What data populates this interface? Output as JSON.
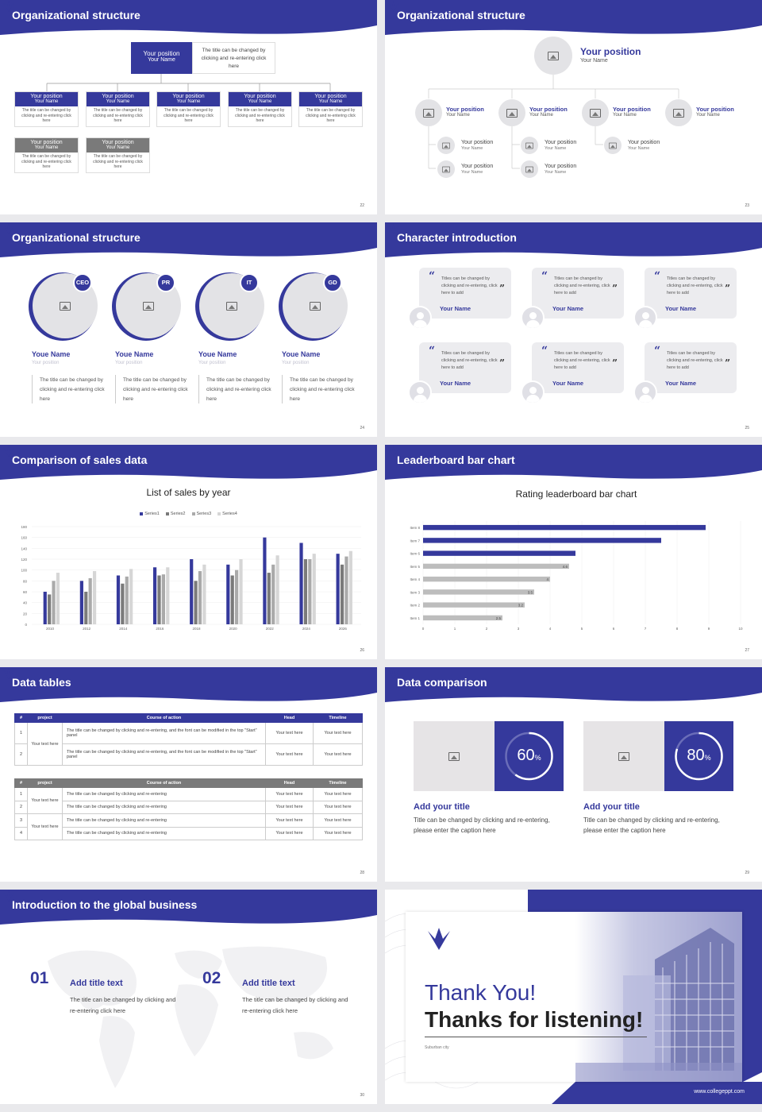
{
  "slides": {
    "s22": {
      "title": "Organizational structure",
      "num": "22",
      "top_box": {
        "position": "Your position",
        "name": "Your Name"
      },
      "top_desc": "The title can be changed by clicking and re-entering click here",
      "row1": [
        {
          "position": "Your position",
          "name": "Your Name",
          "desc": "The title can be changed by clicking and re-entering click here"
        },
        {
          "position": "Your position",
          "name": "Your Name",
          "desc": "The title can be changed by clicking and re-entering click here"
        },
        {
          "position": "Your position",
          "name": "Your Name",
          "desc": "The title can be changed by clicking and re-entering click here"
        },
        {
          "position": "Your position",
          "name": "Your Name",
          "desc": "The title can be changed by clicking and re-entering click here"
        },
        {
          "position": "Your position",
          "name": "Your Name",
          "desc": "The title can be changed by clicking and re-entering click here"
        }
      ],
      "row2": [
        {
          "position": "Your position",
          "name": "Your Name",
          "desc": "The title can be changed by clicking and re-entering click here"
        },
        {
          "position": "Your position",
          "name": "Your Name",
          "desc": "The title can be changed by clicking and re-entering click here"
        }
      ]
    },
    "s23": {
      "title": "Organizational structure",
      "num": "23",
      "top": {
        "position": "Your position",
        "name": "Your Name"
      },
      "level2": [
        {
          "position": "Your position",
          "name": "Your Name"
        },
        {
          "position": "Your position",
          "name": "Your Name"
        },
        {
          "position": "Your position",
          "name": "Your Name"
        },
        {
          "position": "Your position",
          "name": "Your Name"
        }
      ],
      "level3": [
        {
          "position": "Your position",
          "name": "Your Name"
        },
        {
          "position": "Your position",
          "name": "Your Name"
        },
        {
          "position": "Your position",
          "name": "Your Name"
        },
        {
          "position": "Your position",
          "name": "Your Name"
        },
        {
          "position": "Your position",
          "name": "Your Name"
        },
        {
          "position": "Your position",
          "name": "Your Name"
        }
      ]
    },
    "s24": {
      "title": "Organizational structure",
      "num": "24",
      "people": [
        {
          "badge": "CEO",
          "name": "Youe Name",
          "position": "Your position",
          "desc": "The title can be changed by clicking and re-entering click here"
        },
        {
          "badge": "PR",
          "name": "Youe Name",
          "position": "Your position",
          "desc": "The title can be changed by clicking and re-entering click here"
        },
        {
          "badge": "IT",
          "name": "Youe Name",
          "position": "Your position",
          "desc": "The title can be changed by clicking and re-entering click here"
        },
        {
          "badge": "GD",
          "name": "Youe Name",
          "position": "Your position",
          "desc": "The title can be changed by clicking and re-entering click here"
        }
      ]
    },
    "s25": {
      "title": "Character introduction",
      "num": "25",
      "cards": [
        {
          "text": "Titles can be changed by clicking and re-entering, click here to add",
          "name": "Your Name"
        },
        {
          "text": "Titles can be changed by clicking and re-entering, click here to add",
          "name": "Your Name"
        },
        {
          "text": "Titles can be changed by clicking and re-entering, click here to add",
          "name": "Your Name"
        },
        {
          "text": "Titles can be changed by clicking and re-entering, click here to add",
          "name": "Your Name"
        },
        {
          "text": "Titles can be changed by clicking and re-entering, click here to add",
          "name": "Your Name"
        },
        {
          "text": "Titles can be changed by clicking and re-entering, click here to add",
          "name": "Your Name"
        }
      ]
    },
    "s26": {
      "title": "Comparison of sales data",
      "num": "26"
    },
    "s27": {
      "title": "Leaderboard bar chart",
      "num": "27"
    },
    "s28": {
      "title": "Data tables",
      "num": "28",
      "t1": {
        "headers": [
          "#",
          "project",
          "Course of action",
          "Head",
          "Timeline"
        ],
        "group": "Your text here",
        "rows": [
          {
            "n": "1",
            "course": "The title can be changed by clicking and re-entering, and the font can be modified in the top \"Start\" panel",
            "head": "Your text here",
            "time": "Your text here"
          },
          {
            "n": "2",
            "course": "The title can be changed by clicking and re-entering, and the font can be modified in the top \"Start\" panel",
            "head": "Your text here",
            "time": "Your text here"
          }
        ]
      },
      "t2": {
        "headers": [
          "#",
          "project",
          "Course of action",
          "Head",
          "Timeline"
        ],
        "group1": "Your text here",
        "group2": "Your text here",
        "rows": [
          {
            "n": "1",
            "course": "The title can be changed by clicking and re-entering",
            "head": "Your text here",
            "time": "Your text here"
          },
          {
            "n": "2",
            "course": "The title can be changed by clicking and re-entering",
            "head": "Your text here",
            "time": "Your text here"
          },
          {
            "n": "3",
            "course": "The title can be changed by clicking and re-entering",
            "head": "Your text here",
            "time": "Your text here"
          },
          {
            "n": "4",
            "course": "The title can be changed by clicking and re-entering",
            "head": "Your text here",
            "time": "Your text here"
          }
        ]
      }
    },
    "s29": {
      "title": "Data comparison",
      "num": "29",
      "items": [
        {
          "pct": "60",
          "unit": "%",
          "value": 0.6,
          "heading": "Add your title",
          "desc": "Title can be changed by clicking and re-entering, please enter the caption here"
        },
        {
          "pct": "80",
          "unit": "%",
          "value": 0.8,
          "heading": "Add your title",
          "desc": "Title can be changed by clicking and re-entering, please enter the caption here"
        }
      ]
    },
    "s30": {
      "title": "Introduction to the global business",
      "num": "30",
      "items": [
        {
          "n": "01",
          "heading": "Add title text",
          "desc": "The title can be changed by clicking and re-entering click here"
        },
        {
          "n": "02",
          "heading": "Add title text",
          "desc": "The title can be changed by clicking and re-entering click here"
        }
      ]
    },
    "s31": {
      "line1": "Thank You!",
      "line2": "Thanks for listening!",
      "small": "Suburban city",
      "url": "www.collegeppt.com"
    }
  },
  "colors": {
    "primary": "#35399c",
    "grey": "#7a7a7a",
    "light": "#bdbdbd"
  },
  "chart_data": [
    {
      "type": "bar",
      "title": "List of sales by year",
      "categories": [
        "2010",
        "2012",
        "2014",
        "2016",
        "2018",
        "2020",
        "2022",
        "2024",
        "2026"
      ],
      "ylim": [
        0,
        180
      ],
      "yticks": [
        "0",
        "20",
        "40",
        "60",
        "80",
        "100",
        "120",
        "140",
        "160",
        "180"
      ],
      "series": [
        {
          "name": "Series1",
          "color": "#35399c",
          "values": [
            60,
            80,
            90,
            105,
            120,
            110,
            160,
            150,
            130
          ]
        },
        {
          "name": "Series2",
          "color": "#7a7a7a",
          "values": [
            55,
            60,
            75,
            90,
            80,
            90,
            95,
            120,
            110
          ]
        },
        {
          "name": "Series3",
          "color": "#aaaaaa",
          "values": [
            80,
            85,
            88,
            92,
            98,
            100,
            110,
            120,
            125
          ]
        },
        {
          "name": "Series4",
          "color": "#d6d6d6",
          "values": [
            95,
            98,
            102,
            105,
            110,
            120,
            127,
            130,
            135
          ]
        }
      ]
    },
    {
      "type": "bar",
      "orientation": "horizontal",
      "title": "Rating leaderboard bar chart",
      "categories": [
        "Item 8",
        "Item 7",
        "Item 6",
        "Item 5",
        "Item 4",
        "Item 3",
        "Item 2",
        "Item 1"
      ],
      "values": [
        8.9,
        7.5,
        4.8,
        4.6,
        4,
        3.5,
        3.2,
        2.5
      ],
      "labels": [
        "",
        "",
        "",
        "4.6",
        "4",
        "3.5",
        "3.2",
        "2.5"
      ],
      "xlim": [
        0,
        10
      ],
      "xticks": [
        "0",
        "1",
        "2",
        "3",
        "4",
        "5",
        "6",
        "7",
        "8",
        "9",
        "10"
      ],
      "highlight_count": 3
    }
  ]
}
